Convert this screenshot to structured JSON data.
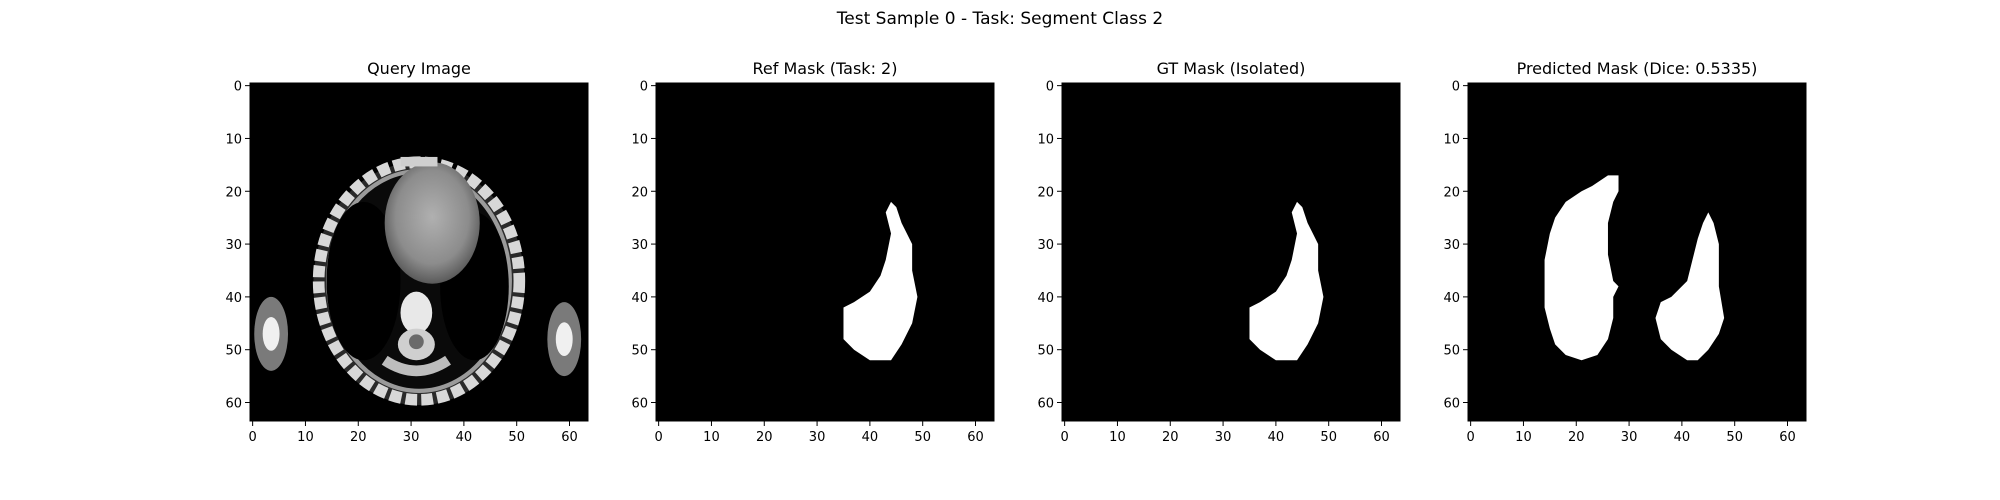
{
  "figure": {
    "suptitle": "Test Sample 0 - Task: Segment Class 2"
  },
  "colors": {
    "background": "#000000",
    "mask": "#ffffff",
    "axis": "#000000"
  },
  "chart_data": [
    {
      "type": "heatmap",
      "title": "Query Image",
      "image": "ct-slice",
      "x_ticks": [
        0,
        10,
        20,
        30,
        40,
        50,
        60
      ],
      "y_ticks": [
        0,
        10,
        20,
        30,
        40,
        50,
        60
      ],
      "xlim": [
        -0.5,
        63.5
      ],
      "ylim": [
        63.5,
        -0.5
      ],
      "colormap": "gray"
    },
    {
      "type": "heatmap",
      "title": "Ref Mask (Task: 2)",
      "image": "binary-mask",
      "x_ticks": [
        0,
        10,
        20,
        30,
        40,
        50,
        60
      ],
      "y_ticks": [
        0,
        10,
        20,
        30,
        40,
        50,
        60
      ],
      "xlim": [
        -0.5,
        63.5
      ],
      "ylim": [
        63.5,
        -0.5
      ],
      "colormap": "gray",
      "regions": [
        {
          "name": "right-organ",
          "polygon": [
            [
              44,
              22
            ],
            [
              45,
              23
            ],
            [
              46,
              26
            ],
            [
              47,
              28
            ],
            [
              48,
              30
            ],
            [
              48,
              35
            ],
            [
              49,
              40
            ],
            [
              48,
              45
            ],
            [
              46,
              49
            ],
            [
              44,
              52
            ],
            [
              40,
              52
            ],
            [
              37,
              50
            ],
            [
              35,
              48
            ],
            [
              35,
              42
            ],
            [
              37,
              41
            ],
            [
              40,
              39
            ],
            [
              42,
              36
            ],
            [
              43,
              33
            ],
            [
              44,
              28
            ],
            [
              43,
              24
            ]
          ]
        }
      ]
    },
    {
      "type": "heatmap",
      "title": "GT Mask (Isolated)",
      "image": "binary-mask",
      "x_ticks": [
        0,
        10,
        20,
        30,
        40,
        50,
        60
      ],
      "y_ticks": [
        0,
        10,
        20,
        30,
        40,
        50,
        60
      ],
      "xlim": [
        -0.5,
        63.5
      ],
      "ylim": [
        63.5,
        -0.5
      ],
      "colormap": "gray",
      "regions": [
        {
          "name": "right-organ",
          "polygon": [
            [
              44,
              22
            ],
            [
              45,
              23
            ],
            [
              46,
              26
            ],
            [
              47,
              28
            ],
            [
              48,
              30
            ],
            [
              48,
              35
            ],
            [
              49,
              40
            ],
            [
              48,
              45
            ],
            [
              46,
              49
            ],
            [
              44,
              52
            ],
            [
              40,
              52
            ],
            [
              37,
              50
            ],
            [
              35,
              48
            ],
            [
              35,
              42
            ],
            [
              37,
              41
            ],
            [
              40,
              39
            ],
            [
              42,
              36
            ],
            [
              43,
              33
            ],
            [
              44,
              28
            ],
            [
              43,
              24
            ]
          ]
        }
      ]
    },
    {
      "type": "heatmap",
      "title": "Predicted Mask (Dice: 0.5335)",
      "image": "binary-mask",
      "dice": 0.5335,
      "x_ticks": [
        0,
        10,
        20,
        30,
        40,
        50,
        60
      ],
      "y_ticks": [
        0,
        10,
        20,
        30,
        40,
        50,
        60
      ],
      "xlim": [
        -0.5,
        63.5
      ],
      "ylim": [
        63.5,
        -0.5
      ],
      "colormap": "gray",
      "regions": [
        {
          "name": "left-organ",
          "polygon": [
            [
              26,
              17
            ],
            [
              28,
              17
            ],
            [
              28,
              20
            ],
            [
              27,
              22
            ],
            [
              26,
              26
            ],
            [
              26,
              32
            ],
            [
              27,
              37
            ],
            [
              28,
              38
            ],
            [
              27,
              40
            ],
            [
              27,
              44
            ],
            [
              26,
              48
            ],
            [
              24,
              51
            ],
            [
              21,
              52
            ],
            [
              18,
              51
            ],
            [
              16,
              49
            ],
            [
              15,
              46
            ],
            [
              14,
              42
            ],
            [
              14,
              33
            ],
            [
              15,
              28
            ],
            [
              16,
              25
            ],
            [
              18,
              22
            ],
            [
              21,
              20
            ],
            [
              23,
              19
            ]
          ]
        },
        {
          "name": "right-organ",
          "polygon": [
            [
              45,
              24
            ],
            [
              46,
              26
            ],
            [
              47,
              30
            ],
            [
              47,
              38
            ],
            [
              48,
              44
            ],
            [
              47,
              47
            ],
            [
              45,
              50
            ],
            [
              43,
              52
            ],
            [
              41,
              52
            ],
            [
              38,
              50
            ],
            [
              36,
              48
            ],
            [
              35,
              44
            ],
            [
              36,
              41
            ],
            [
              38,
              40
            ],
            [
              41,
              37
            ],
            [
              42,
              33
            ],
            [
              43,
              29
            ],
            [
              44,
              26
            ]
          ]
        }
      ]
    }
  ]
}
